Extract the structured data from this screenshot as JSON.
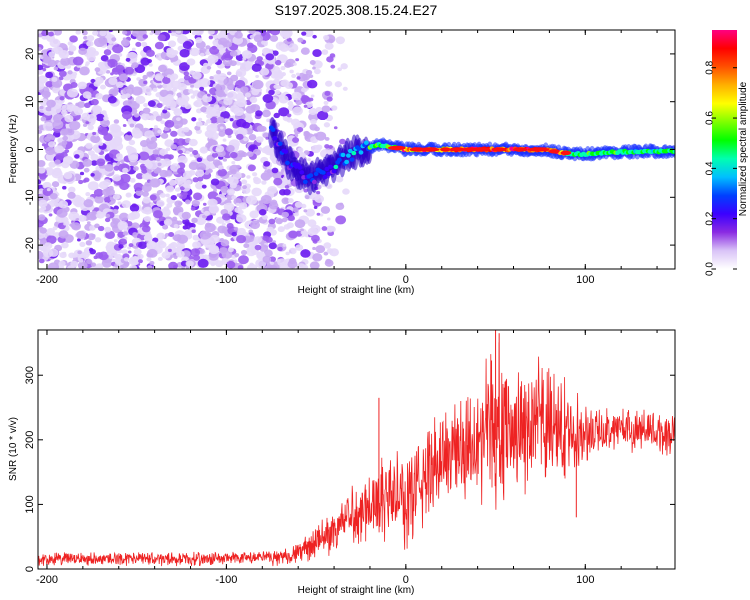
{
  "chart_data": [
    {
      "type": "heatmap",
      "title": "S197.2025.308.15.24.E27",
      "xlabel": "Height of straight line (km)",
      "ylabel": "Frequency (Hz)",
      "xlim": [
        -205,
        150
      ],
      "ylim": [
        -25,
        25
      ],
      "xticks": [
        -200,
        -100,
        0,
        100
      ],
      "xtick_labels": [
        "-200",
        "-100",
        "0",
        "100"
      ],
      "yticks": [
        -20,
        -10,
        0,
        10,
        20
      ],
      "ytick_labels": [
        "-20",
        "-10",
        "0",
        "10",
        "20"
      ],
      "colorbar": {
        "label": "Normalized spectral amplitude",
        "range": [
          0,
          0.95
        ],
        "ticks": [
          0.0,
          0.2,
          0.4,
          0.6,
          0.8
        ],
        "tick_labels": [
          "0.0",
          "0.2",
          "0.4",
          "0.6",
          "0.8"
        ],
        "colors": [
          "#ffffff",
          "#d9c3f7",
          "#8a2be2",
          "#3b00ff",
          "#0040ff",
          "#00bfff",
          "#00ffb0",
          "#00ff00",
          "#7fff00",
          "#ffff00",
          "#ffb000",
          "#ff5000",
          "#ff0000",
          "#ff0080"
        ]
      },
      "ridge": {
        "description_points": [
          {
            "x": -75,
            "y": 4
          },
          {
            "x": -65,
            "y": -3
          },
          {
            "x": -55,
            "y": -6
          },
          {
            "x": -45,
            "y": -5
          },
          {
            "x": -35,
            "y": -2
          },
          {
            "x": -25,
            "y": 0
          },
          {
            "x": -15,
            "y": 1
          },
          {
            "x": 0,
            "y": 0
          },
          {
            "x": 25,
            "y": 0
          },
          {
            "x": 50,
            "y": 0
          },
          {
            "x": 75,
            "y": 0
          },
          {
            "x": 95,
            "y": -1
          },
          {
            "x": 120,
            "y": -0.5
          },
          {
            "x": 150,
            "y": -0.3
          }
        ],
        "peak_amplitude": 0.95,
        "peak_range_km": [
          -5,
          90
        ]
      },
      "noise_region_km": [
        -205,
        -70
      ]
    },
    {
      "type": "line",
      "xlabel": "Height of straight line (km)",
      "ylabel": "SNR (10 * v/v)",
      "xlim": [
        -205,
        150
      ],
      "ylim": [
        0,
        370
      ],
      "xticks": [
        -200,
        -100,
        0,
        100
      ],
      "xtick_labels": [
        "-200",
        "-100",
        "0",
        "100"
      ],
      "yticks": [
        0,
        100,
        200,
        300
      ],
      "ytick_labels": [
        "0",
        "100",
        "200",
        "300"
      ],
      "series": [
        {
          "name": "SNR",
          "color": "#ee2222",
          "x": [
            -205,
            -180,
            -150,
            -120,
            -90,
            -70,
            -60,
            -50,
            -40,
            -30,
            -20,
            -10,
            0,
            10,
            20,
            30,
            40,
            50,
            60,
            70,
            80,
            90,
            100,
            110,
            120,
            130,
            140,
            150
          ],
          "y": [
            15,
            16,
            16,
            15,
            17,
            18,
            25,
            40,
            60,
            85,
            100,
            115,
            105,
            140,
            175,
            190,
            210,
            220,
            215,
            225,
            220,
            215,
            210,
            215,
            220,
            215,
            210,
            210
          ],
          "spread": [
            12,
            12,
            12,
            12,
            12,
            14,
            20,
            30,
            40,
            55,
            70,
            80,
            90,
            90,
            90,
            100,
            120,
            140,
            130,
            120,
            110,
            90,
            50,
            40,
            40,
            40,
            40,
            40
          ]
        }
      ],
      "annotations": {
        "max_spikes": [
          {
            "x": -15,
            "y": 265
          },
          {
            "x": 50,
            "y": 370
          },
          {
            "x": 52,
            "y": 365
          },
          {
            "x": 95,
            "y": 80
          }
        ]
      }
    }
  ]
}
